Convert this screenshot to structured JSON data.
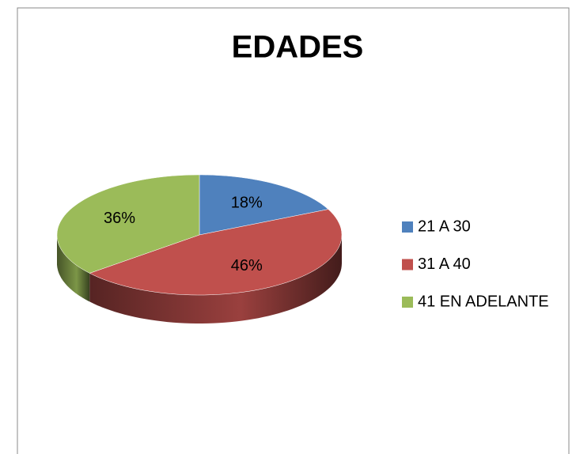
{
  "chart_data": {
    "type": "pie",
    "title": "EDADES",
    "categories": [
      "21 A 30",
      "31 A 40",
      "41 EN ADELANTE"
    ],
    "values": [
      18,
      46,
      36
    ],
    "value_labels": [
      "18%",
      "46%",
      "36%"
    ],
    "colors": [
      "#4f81bd",
      "#c0504d",
      "#9bbb59"
    ],
    "legend": "right"
  }
}
